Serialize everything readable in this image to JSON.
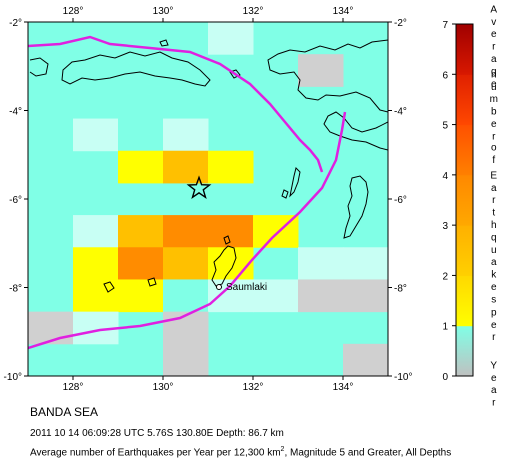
{
  "map": {
    "lon_ticks": [
      "128°",
      "130°",
      "132°",
      "134°"
    ],
    "lat_ticks": [
      "-2°",
      "-4°",
      "-6°",
      "-8°",
      "-10°"
    ],
    "lon_range": [
      127,
      135
    ],
    "lat_range": [
      -10,
      -2
    ],
    "place_label": "Saumlaki",
    "epicenter": {
      "lon": 130.8,
      "lat": -5.76
    },
    "colorbar": {
      "min": 0,
      "max": 7,
      "tick_labels": [
        "0",
        "1",
        "2",
        "3",
        "4",
        "5",
        "6",
        "7"
      ],
      "title_words": [
        "Average",
        "number",
        "of",
        "Earthquakes",
        "per",
        "Year"
      ],
      "colors": [
        "#c8c8c8",
        "#80ffe6",
        "#ffff00",
        "#ffd000",
        "#ffa000",
        "#ff7800",
        "#ff3c00",
        "#a00000"
      ]
    },
    "grid_cells_note": "levels per 1x1 degree cell",
    "cells": [
      {
        "row": 0,
        "levels": [
          1,
          1,
          1,
          1,
          1.2,
          1,
          1,
          1
        ]
      },
      {
        "row": 1,
        "levels": [
          1,
          1,
          1,
          1,
          1,
          1,
          0.3,
          1
        ]
      },
      {
        "row": 2,
        "levels": [
          1,
          1,
          1,
          1,
          1,
          1,
          1,
          1
        ]
      },
      {
        "row": 3,
        "levels": [
          1,
          1.3,
          1.6,
          1.2,
          1,
          1,
          1,
          1
        ]
      },
      {
        "row": 4,
        "levels": [
          1,
          1,
          2.2,
          3.5,
          2.2,
          1,
          1,
          1
        ]
      },
      {
        "row": 5,
        "levels": [
          1,
          1,
          1,
          1,
          1,
          1,
          1.5,
          1
        ]
      },
      {
        "row": 6,
        "levels": [
          1,
          1.3,
          2.6,
          3.7,
          3.8,
          2.2,
          1,
          1
        ]
      },
      {
        "row": 7,
        "levels": [
          1,
          2.3,
          3.6,
          3.5,
          2.1,
          1,
          1.4,
          0.7
        ]
      },
      {
        "row": 8,
        "levels": [
          1,
          2.2,
          2.2,
          1.5,
          1.3,
          0.7,
          0.5,
          0.5
        ]
      },
      {
        "row": 9,
        "levels": [
          0.5,
          1.4,
          1,
          0.5,
          1,
          1,
          1,
          1
        ]
      },
      {
        "row": 10,
        "levels": [
          1,
          1,
          1,
          0.5,
          1,
          1,
          1,
          0.5
        ]
      }
    ]
  },
  "caption": {
    "title": "BANDA SEA",
    "event": "2011 10 14 06:09:28 UTC 5.76S 130.80E Depth: 86.7 km",
    "desc_pre": "Average number of Earthquakes per Year per 12,300 km",
    "desc_sup": "2",
    "desc_post": ", Magnitude 5 and Greater, All Depths"
  }
}
